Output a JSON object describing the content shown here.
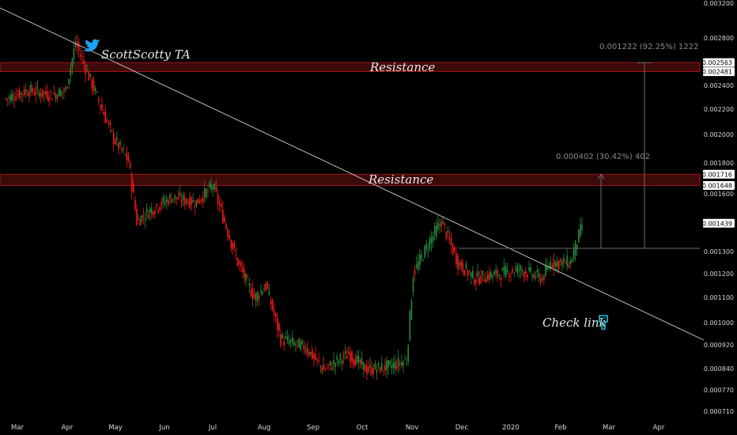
{
  "chart_data": {
    "type": "candlestick",
    "title": "",
    "xlabel": "",
    "ylabel": "",
    "watermark": "ScottScotty TA",
    "x_ticks": [
      "Mar",
      "Apr",
      "May",
      "Jun",
      "Jul",
      "Aug",
      "Sep",
      "Oct",
      "Nov",
      "Dec",
      "2020",
      "Feb",
      "Mar",
      "Apr"
    ],
    "y_ticks": [
      "0.003200",
      "0.002800",
      "0.002400",
      "0.002200",
      "0.002000",
      "0.001800",
      "0.001600",
      "0.001300",
      "0.001200",
      "0.001100",
      "0.001000",
      "0.000920",
      "0.000840",
      "0.000770",
      "0.000710"
    ],
    "ylim": [
      0.00071,
      0.0032
    ],
    "y_scale": "log",
    "colors": {
      "up": "#2a8a3a",
      "down": "#f21b1b",
      "zone_fill": "#3d0a0a",
      "zone_border": "#a01515",
      "text": "#d6d6d6",
      "measure": "#6b6b6b"
    },
    "price_path": {
      "x": [
        "2019-02-25",
        "2019-03-10",
        "2019-03-25",
        "2019-04-02",
        "2019-04-08",
        "2019-04-20",
        "2019-05-01",
        "2019-05-10",
        "2019-05-15",
        "2019-05-22",
        "2019-06-05",
        "2019-06-20",
        "2019-06-30",
        "2019-07-05",
        "2019-07-15",
        "2019-07-25",
        "2019-08-01",
        "2019-08-10",
        "2019-08-25",
        "2019-09-05",
        "2019-09-20",
        "2019-10-01",
        "2019-10-15",
        "2019-10-25",
        "2019-10-29",
        "2019-11-08",
        "2019-11-15",
        "2019-11-25",
        "2019-12-05",
        "2019-12-20",
        "2020-01-01",
        "2020-01-15",
        "2020-01-20",
        "2020-02-01",
        "2020-02-08"
      ],
      "y": [
        0.00225,
        0.00232,
        0.00228,
        0.00232,
        0.00275,
        0.0023,
        0.00195,
        0.0018,
        0.00145,
        0.0015,
        0.00158,
        0.00155,
        0.00165,
        0.0015,
        0.00125,
        0.0011,
        0.00115,
        0.00095,
        0.00092,
        0.00085,
        0.0009,
        0.00085,
        0.00086,
        0.00088,
        0.0012,
        0.00135,
        0.00145,
        0.00125,
        0.00118,
        0.0012,
        0.00122,
        0.00118,
        0.00125,
        0.00125,
        0.00143
      ]
    },
    "annotations": {
      "resistance_upper": {
        "label": "Resistance",
        "from": 0.002481,
        "to": 0.002563
      },
      "resistance_lower": {
        "label": "Resistance",
        "from": 0.001648,
        "to": 0.001716
      },
      "trendline_label": "Check link",
      "measure_upper": "0.001222 (92.25%) 1222",
      "measure_lower": "0.000402 (30.42%) 402",
      "badges": [
        "0.002563",
        "0.002481",
        "0.001716",
        "0.001648",
        "0.001439"
      ]
    }
  }
}
